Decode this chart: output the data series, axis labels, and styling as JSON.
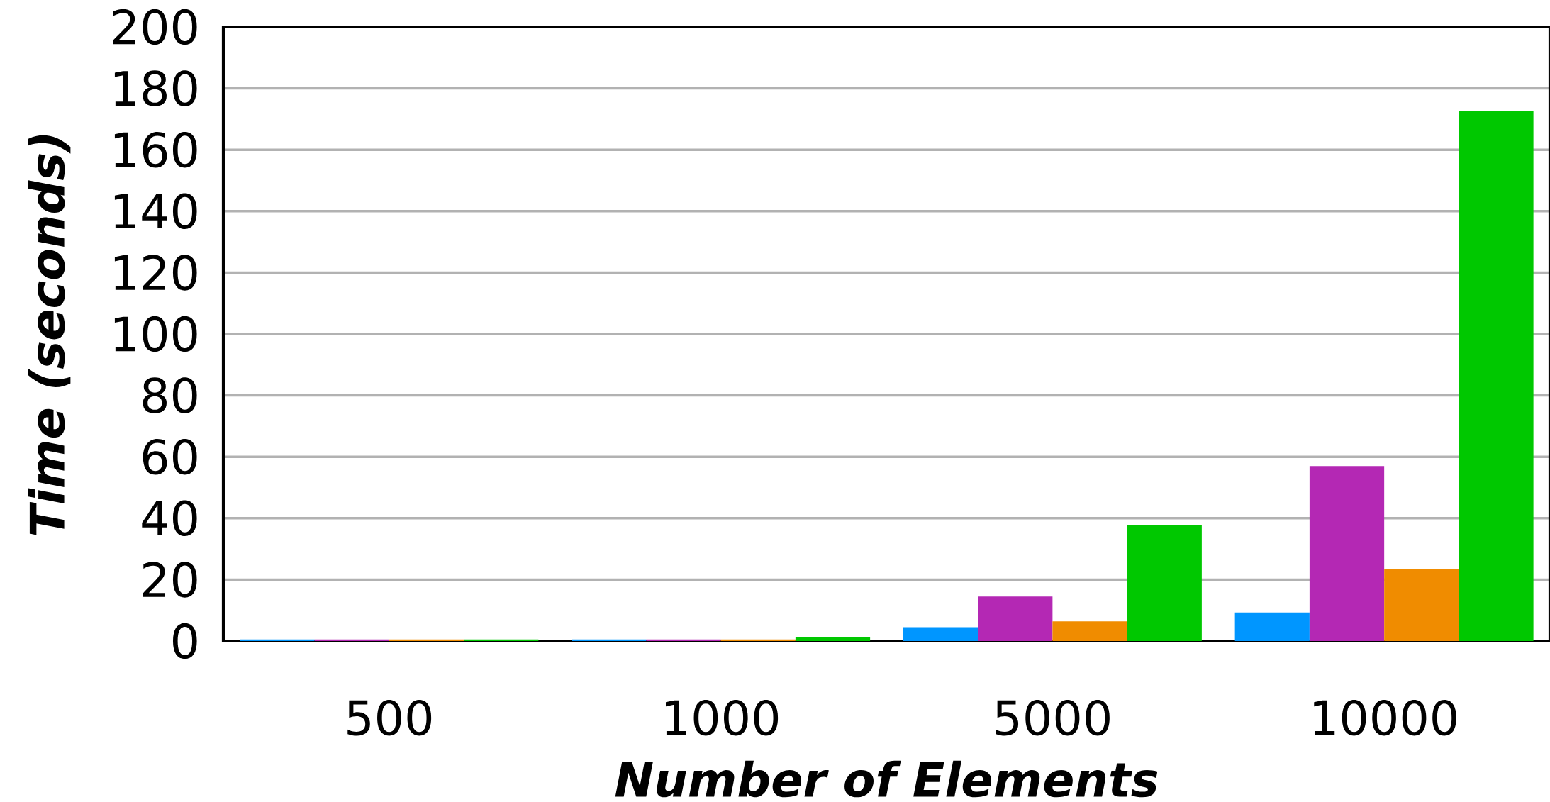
{
  "chart_data": {
    "type": "bar",
    "xlabel": "Number of Elements",
    "ylabel": "Time (seconds)",
    "categories": [
      "500",
      "1000",
      "5000",
      "10000"
    ],
    "series": [
      {
        "color": "#0096ff",
        "values": [
          0.5,
          0.5,
          4.5,
          9.3
        ]
      },
      {
        "color": "#b428b4",
        "values": [
          0.5,
          0.5,
          14.5,
          57
        ]
      },
      {
        "color": "#f08c00",
        "values": [
          0.5,
          0.5,
          6.4,
          23.5
        ]
      },
      {
        "color": "#00c800",
        "values": [
          0.5,
          1.3,
          37.7,
          172.6
        ]
      }
    ],
    "ylim": [
      0,
      200
    ],
    "yticks": [
      0,
      20,
      40,
      60,
      80,
      100,
      120,
      140,
      160,
      180,
      200
    ],
    "grid": "y"
  }
}
